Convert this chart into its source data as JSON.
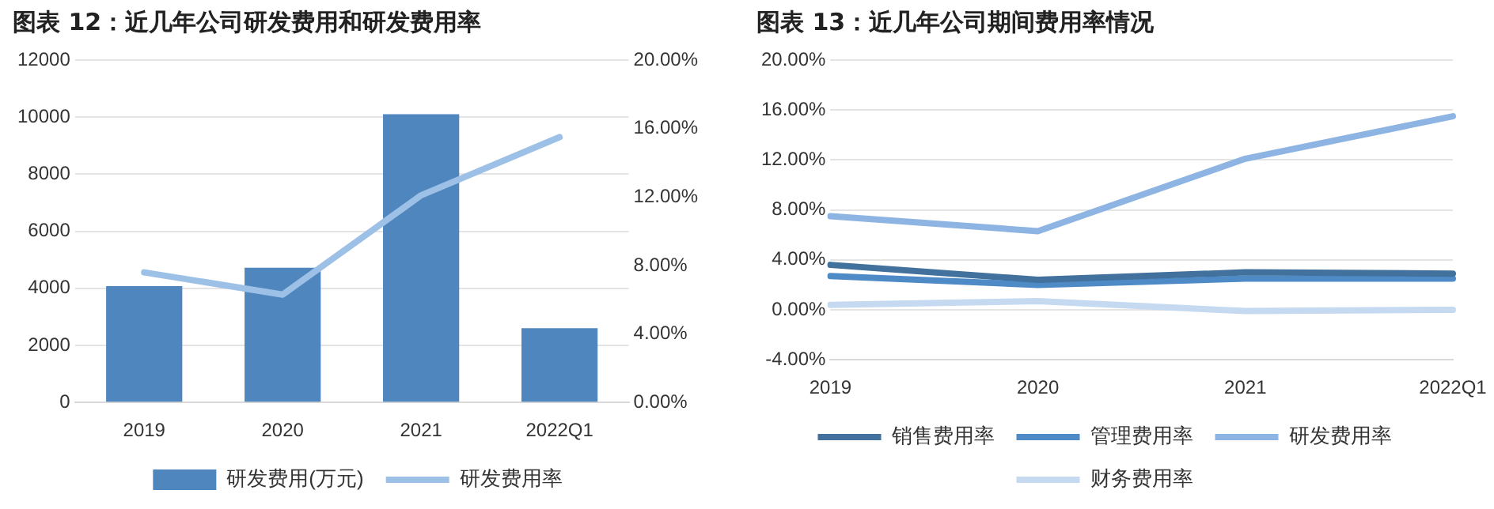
{
  "chart_data": [
    {
      "type": "bar",
      "title": "图表 12：近几年公司研发费用和研发费用率",
      "categories": [
        "2019",
        "2020",
        "2021",
        "2022Q1"
      ],
      "series": [
        {
          "name": "研发费用(万元)",
          "color": "#4f86be",
          "values": [
            4080,
            4720,
            10100,
            2600
          ]
        },
        {
          "name": "研发费用率",
          "type": "line",
          "axis": "y2",
          "color": "#9dc0e6",
          "values": [
            7.6,
            6.3,
            12.1,
            15.5
          ]
        }
      ],
      "ylim": [
        0,
        12000
      ],
      "yticks": [
        0,
        2000,
        4000,
        6000,
        8000,
        10000,
        12000
      ],
      "y2lim": [
        0,
        20
      ],
      "y2ticks": [
        {
          "value": 0,
          "label": "0.00%"
        },
        {
          "value": 4,
          "label": "4.00%"
        },
        {
          "value": 8,
          "label": "8.00%"
        },
        {
          "value": 12,
          "label": "12.00%"
        },
        {
          "value": 16,
          "label": "16.00%"
        },
        {
          "value": 20,
          "label": "20.00%"
        }
      ],
      "grid": "y",
      "legend": "bottom",
      "marker": "none"
    },
    {
      "type": "line",
      "title": "图表 13：近几年公司期间费用率情况",
      "categories": [
        "2019",
        "2020",
        "2021",
        "2022Q1"
      ],
      "series": [
        {
          "name": "销售费用率",
          "color": "#41719c",
          "values": [
            3.6,
            2.4,
            3.0,
            2.9
          ]
        },
        {
          "name": "管理费用率",
          "color": "#4e8ac6",
          "values": [
            2.7,
            2.0,
            2.5,
            2.5
          ]
        },
        {
          "name": "研发费用率",
          "color": "#8db4e2",
          "values": [
            7.5,
            6.3,
            12.1,
            15.5
          ]
        },
        {
          "name": "财务费用率",
          "color": "#c5d9f1",
          "values": [
            0.4,
            0.7,
            -0.1,
            0.0
          ]
        }
      ],
      "ylim": [
        -4,
        20
      ],
      "yticks": [
        {
          "value": -4,
          "label": "-4.00%"
        },
        {
          "value": 0,
          "label": "0.00%"
        },
        {
          "value": 4,
          "label": "4.00%"
        },
        {
          "value": 8,
          "label": "8.00%"
        },
        {
          "value": 12,
          "label": "12.00%"
        },
        {
          "value": 16,
          "label": "16.00%"
        },
        {
          "value": 20,
          "label": "20.00%"
        }
      ],
      "grid": "y",
      "legend": "bottom",
      "marker": "none"
    }
  ]
}
